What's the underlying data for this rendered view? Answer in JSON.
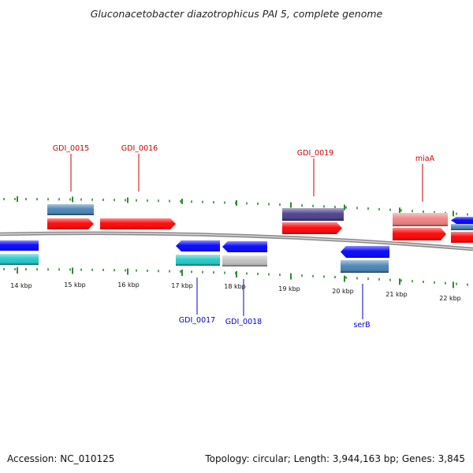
{
  "title": "Gluconacetobacter diazotrophicus PAI 5, complete genome",
  "footer": {
    "accession": "Accession: NC_010125",
    "summary": "Topology: circular; Length: 3,944,163 bp; Genes: 3,845"
  },
  "colors": {
    "forward_label": "#cc0000",
    "reverse_label": "#0000cc",
    "tick": "#2e8b2e",
    "backbone": "#8a8a8a"
  },
  "ticks": [
    {
      "label": "14 kbp"
    },
    {
      "label": "15 kbp"
    },
    {
      "label": "16 kbp"
    },
    {
      "label": "17 kbp"
    },
    {
      "label": "18 kbp"
    },
    {
      "label": "19 kbp"
    },
    {
      "label": "20 kbp"
    },
    {
      "label": "21 kbp"
    },
    {
      "label": "22 kbp"
    }
  ],
  "genes": [
    {
      "label": "GDI_0015",
      "strand": "+",
      "color": "#ff0000",
      "cog_color": "#4682b4"
    },
    {
      "label": "GDI_0016",
      "strand": "+",
      "color": "#ff0000"
    },
    {
      "label": "GDI_0017",
      "strand": "-",
      "color": "#0000ff",
      "cog_color": "#20c8c8"
    },
    {
      "label": "GDI_0018",
      "strand": "-",
      "color": "#0000ff",
      "cog_color": "#c0c0c0"
    },
    {
      "label": "GDI_0019",
      "strand": "+",
      "color": "#ff0000",
      "cog_color": "#483d8b"
    },
    {
      "label": "serB",
      "strand": "-",
      "color": "#0000ff",
      "cog_color": "#4682b4"
    },
    {
      "label": "miaA",
      "strand": "+",
      "color": "#ff0000",
      "cog_color": "#f08080"
    }
  ]
}
